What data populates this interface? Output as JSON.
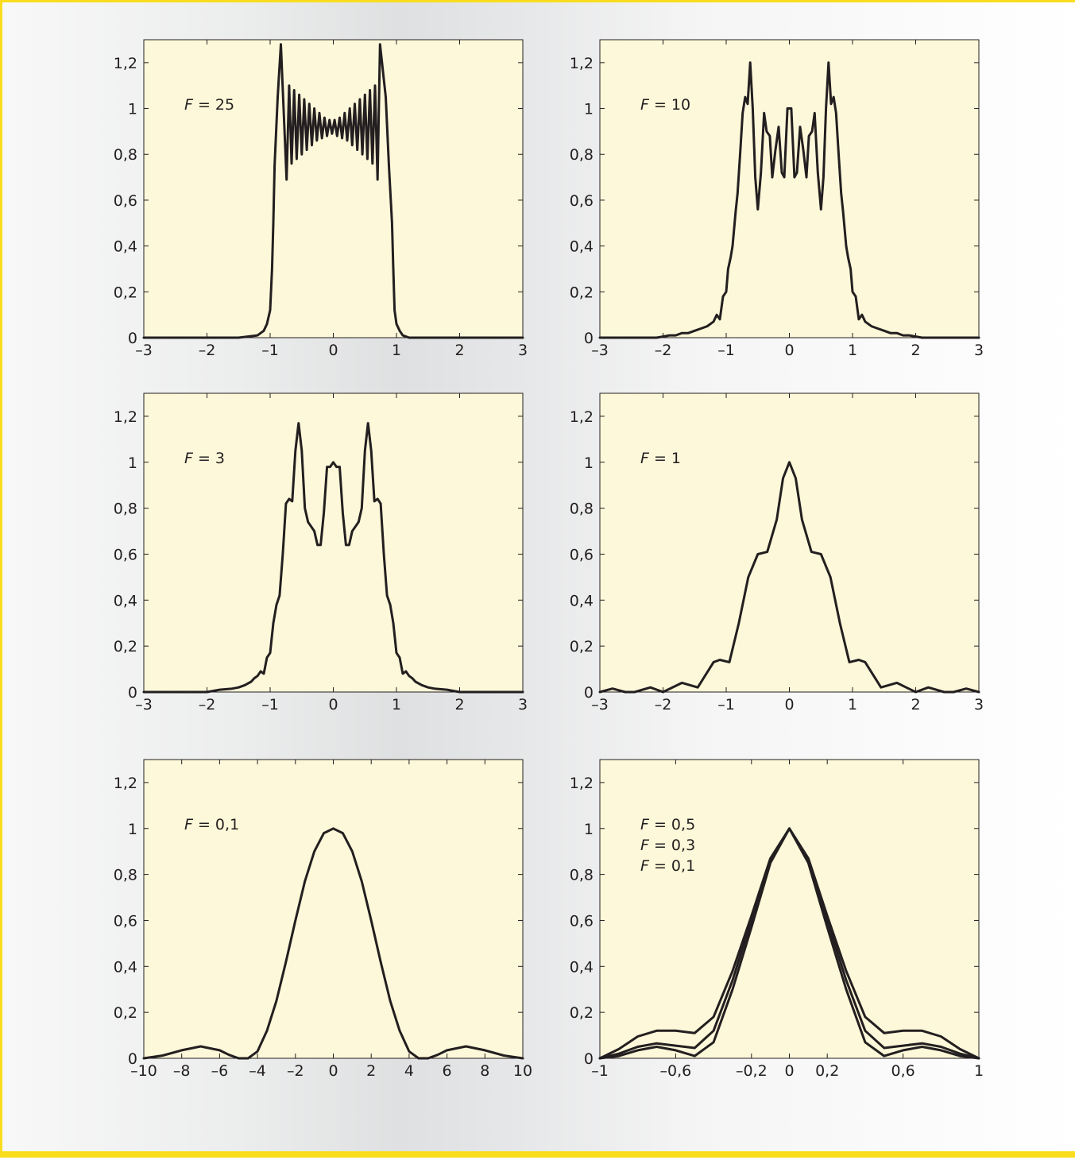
{
  "style": {
    "plot_background": "#fdf8d9",
    "line_color": "#231f20",
    "frame_color": "#231f20",
    "border_color": "#f9dd1d"
  },
  "chart_data": [
    {
      "type": "line",
      "annotations": [
        {
          "italic": "F",
          "rest": " = 25"
        }
      ],
      "xlim": [
        -3,
        3
      ],
      "ylim": [
        0,
        1.3
      ],
      "xticks": [
        -3,
        -2,
        -1,
        0,
        1,
        2,
        3
      ],
      "xtick_labels": [
        "–3",
        "–2",
        "–1",
        "0",
        "1",
        "2",
        "3"
      ],
      "yticks": [
        0,
        0.2,
        0.4,
        0.6,
        0.8,
        1,
        1.2
      ],
      "ytick_labels": [
        "0",
        "0,2",
        "0,4",
        "0,6",
        "0,8",
        "1",
        "1,2"
      ],
      "series": [
        {
          "x": [
            -3,
            -1.5,
            -1.2,
            -1.1,
            -1.05,
            -1.0,
            -0.97,
            -0.95,
            -0.93,
            -0.88,
            -0.83,
            -0.74,
            -0.7,
            -0.66,
            -0.62,
            -0.58,
            -0.54,
            -0.5,
            -0.46,
            -0.42,
            -0.38,
            -0.34,
            -0.3,
            -0.26,
            -0.22,
            -0.18,
            -0.14,
            -0.1,
            -0.06,
            -0.02,
            0.02,
            0.06,
            0.1,
            0.14,
            0.18,
            0.22,
            0.26,
            0.3,
            0.34,
            0.38,
            0.42,
            0.46,
            0.5,
            0.54,
            0.58,
            0.62,
            0.66,
            0.7,
            0.74,
            0.83,
            0.88,
            0.93,
            0.95,
            0.97,
            1.0,
            1.05,
            1.1,
            1.2,
            1.5,
            3
          ],
          "y": [
            0,
            0,
            0.01,
            0.03,
            0.06,
            0.12,
            0.3,
            0.5,
            0.75,
            1.05,
            1.28,
            0.69,
            1.1,
            0.76,
            1.08,
            0.78,
            1.06,
            0.8,
            1.04,
            0.82,
            1.02,
            0.84,
            1.0,
            0.86,
            0.98,
            0.87,
            0.96,
            0.88,
            0.95,
            0.89,
            0.95,
            0.88,
            0.96,
            0.87,
            0.98,
            0.86,
            1.0,
            0.84,
            1.02,
            0.82,
            1.04,
            0.8,
            1.06,
            0.78,
            1.08,
            0.76,
            1.1,
            0.69,
            1.28,
            1.05,
            0.75,
            0.5,
            0.3,
            0.12,
            0.06,
            0.03,
            0.01,
            0,
            0,
            0
          ]
        }
      ]
    },
    {
      "type": "line",
      "annotations": [
        {
          "italic": "F",
          "rest": " = 10"
        }
      ],
      "xlim": [
        -3,
        3
      ],
      "ylim": [
        0,
        1.3
      ],
      "xticks": [
        -3,
        -2,
        -1,
        0,
        1,
        2,
        3
      ],
      "xtick_labels": [
        "–3",
        "–2",
        "–1",
        "0",
        "1",
        "2",
        "3"
      ],
      "yticks": [
        0,
        0.2,
        0.4,
        0.6,
        0.8,
        1,
        1.2
      ],
      "ytick_labels": [
        "0",
        "0,2",
        "0,4",
        "0,6",
        "0,8",
        "1",
        "1,2"
      ],
      "series": [
        {
          "x": [
            -3,
            -2.1,
            -2.0,
            -1.9,
            -1.8,
            -1.7,
            -1.6,
            -1.5,
            -1.4,
            -1.3,
            -1.2,
            -1.15,
            -1.1,
            -1.05,
            -1.0,
            -0.97,
            -0.93,
            -0.9,
            -0.85,
            -0.82,
            -0.78,
            -0.74,
            -0.7,
            -0.66,
            -0.62,
            -0.58,
            -0.54,
            -0.5,
            -0.45,
            -0.4,
            -0.36,
            -0.31,
            -0.27,
            -0.22,
            -0.17,
            -0.12,
            -0.08,
            -0.03,
            0.03,
            0.08,
            0.12,
            0.17,
            0.22,
            0.27,
            0.31,
            0.36,
            0.4,
            0.45,
            0.5,
            0.54,
            0.58,
            0.62,
            0.66,
            0.7,
            0.74,
            0.78,
            0.82,
            0.85,
            0.9,
            0.93,
            0.97,
            1.0,
            1.05,
            1.1,
            1.15,
            1.2,
            1.3,
            1.4,
            1.5,
            1.6,
            1.7,
            1.8,
            1.9,
            2.0,
            2.1,
            3
          ],
          "y": [
            0,
            0,
            0.005,
            0.01,
            0.01,
            0.02,
            0.02,
            0.03,
            0.04,
            0.05,
            0.07,
            0.1,
            0.08,
            0.18,
            0.2,
            0.3,
            0.35,
            0.4,
            0.55,
            0.63,
            0.8,
            0.98,
            1.05,
            1.02,
            1.2,
            1.0,
            0.7,
            0.56,
            0.72,
            0.98,
            0.9,
            0.88,
            0.7,
            0.82,
            0.92,
            0.72,
            0.7,
            1.0,
            1.0,
            0.7,
            0.72,
            0.92,
            0.82,
            0.7,
            0.88,
            0.9,
            0.98,
            0.72,
            0.56,
            0.7,
            1.0,
            1.2,
            1.02,
            1.05,
            0.98,
            0.8,
            0.63,
            0.55,
            0.4,
            0.35,
            0.3,
            0.2,
            0.18,
            0.08,
            0.1,
            0.07,
            0.05,
            0.04,
            0.03,
            0.02,
            0.02,
            0.01,
            0.01,
            0.005,
            0,
            0
          ]
        }
      ]
    },
    {
      "type": "line",
      "annotations": [
        {
          "italic": "F",
          "rest": " = 3"
        }
      ],
      "xlim": [
        -3,
        3
      ],
      "ylim": [
        0,
        1.3
      ],
      "xticks": [
        -3,
        -2,
        -1,
        0,
        1,
        2,
        3
      ],
      "xtick_labels": [
        "–3",
        "–2",
        "–1",
        "0",
        "1",
        "2",
        "3"
      ],
      "yticks": [
        0,
        0.2,
        0.4,
        0.6,
        0.8,
        1,
        1.2
      ],
      "ytick_labels": [
        "0",
        "0,2",
        "0,4",
        "0,6",
        "0,8",
        "1",
        "1,2"
      ],
      "series": [
        {
          "x": [
            -3,
            -2.0,
            -1.8,
            -1.6,
            -1.5,
            -1.4,
            -1.3,
            -1.25,
            -1.2,
            -1.15,
            -1.1,
            -1.05,
            -1.0,
            -0.95,
            -0.9,
            -0.85,
            -0.8,
            -0.75,
            -0.7,
            -0.65,
            -0.6,
            -0.55,
            -0.5,
            -0.45,
            -0.4,
            -0.35,
            -0.3,
            -0.25,
            -0.2,
            -0.15,
            -0.1,
            -0.05,
            0,
            0.05,
            0.1,
            0.15,
            0.2,
            0.25,
            0.3,
            0.35,
            0.4,
            0.45,
            0.5,
            0.55,
            0.6,
            0.65,
            0.7,
            0.75,
            0.8,
            0.85,
            0.9,
            0.95,
            1.0,
            1.05,
            1.1,
            1.15,
            1.2,
            1.25,
            1.3,
            1.4,
            1.5,
            1.6,
            1.8,
            2.0,
            3
          ],
          "y": [
            0,
            0,
            0.01,
            0.015,
            0.02,
            0.03,
            0.045,
            0.06,
            0.07,
            0.09,
            0.08,
            0.15,
            0.17,
            0.3,
            0.38,
            0.42,
            0.6,
            0.82,
            0.84,
            0.83,
            1.05,
            1.17,
            1.05,
            0.8,
            0.74,
            0.72,
            0.7,
            0.64,
            0.64,
            0.78,
            0.98,
            0.98,
            1.0,
            0.98,
            0.98,
            0.78,
            0.64,
            0.64,
            0.7,
            0.72,
            0.74,
            0.8,
            1.05,
            1.17,
            1.05,
            0.83,
            0.84,
            0.82,
            0.6,
            0.42,
            0.38,
            0.3,
            0.17,
            0.15,
            0.08,
            0.09,
            0.07,
            0.06,
            0.045,
            0.03,
            0.02,
            0.015,
            0.01,
            0,
            0
          ]
        }
      ]
    },
    {
      "type": "line",
      "annotations": [
        {
          "italic": "F",
          "rest": " = 1"
        }
      ],
      "xlim": [
        -3,
        3
      ],
      "ylim": [
        0,
        1.3
      ],
      "xticks": [
        -3,
        -2,
        -1,
        0,
        1,
        2,
        3
      ],
      "xtick_labels": [
        "–3",
        "–2",
        "–1",
        "0",
        "1",
        "2",
        "3"
      ],
      "yticks": [
        0,
        0.2,
        0.4,
        0.6,
        0.8,
        1,
        1.2
      ],
      "ytick_labels": [
        "0",
        "0,2",
        "0,4",
        "0,6",
        "0,8",
        "1",
        "1,2"
      ],
      "series": [
        {
          "x": [
            -3,
            -2.8,
            -2.6,
            -2.45,
            -2.2,
            -2.0,
            -1.7,
            -1.45,
            -1.2,
            -1.1,
            -0.95,
            -0.8,
            -0.65,
            -0.5,
            -0.35,
            -0.2,
            -0.1,
            0,
            0.1,
            0.2,
            0.35,
            0.5,
            0.65,
            0.8,
            0.95,
            1.1,
            1.2,
            1.45,
            1.7,
            2.0,
            2.2,
            2.45,
            2.6,
            2.8,
            3
          ],
          "y": [
            0,
            0.015,
            0.0,
            0.0,
            0.02,
            0.0,
            0.04,
            0.02,
            0.13,
            0.14,
            0.13,
            0.3,
            0.5,
            0.6,
            0.61,
            0.75,
            0.93,
            1.0,
            0.93,
            0.75,
            0.61,
            0.6,
            0.5,
            0.3,
            0.13,
            0.14,
            0.13,
            0.02,
            0.04,
            0.0,
            0.02,
            0.0,
            0.0,
            0.015,
            0
          ]
        }
      ]
    },
    {
      "type": "line",
      "annotations": [
        {
          "italic": "F",
          "rest": " = 0,1"
        }
      ],
      "xlim": [
        -10,
        10
      ],
      "ylim": [
        0,
        1.3
      ],
      "xticks": [
        -10,
        -8,
        -6,
        -4,
        -2,
        0,
        2,
        4,
        6,
        8,
        10
      ],
      "xtick_labels": [
        "–10",
        "–8",
        "–6",
        "–4",
        "–2",
        "0",
        "2",
        "4",
        "6",
        "8",
        "10"
      ],
      "yticks": [
        0,
        0.2,
        0.4,
        0.6,
        0.8,
        1,
        1.2
      ],
      "ytick_labels": [
        "0",
        "0,2",
        "0,4",
        "0,6",
        "0,8",
        "1",
        "1,2"
      ],
      "series": [
        {
          "x": [
            -10,
            -9,
            -8,
            -7,
            -6,
            -5.5,
            -5,
            -4.5,
            -4,
            -3.5,
            -3,
            -2.5,
            -2,
            -1.5,
            -1,
            -0.5,
            0,
            0.5,
            1,
            1.5,
            2,
            2.5,
            3,
            3.5,
            4,
            4.5,
            5,
            5.5,
            6,
            7,
            8,
            9,
            10
          ],
          "y": [
            0,
            0.012,
            0.035,
            0.052,
            0.035,
            0.015,
            0.0,
            0.0,
            0.03,
            0.12,
            0.25,
            0.42,
            0.6,
            0.77,
            0.9,
            0.98,
            1.0,
            0.98,
            0.9,
            0.77,
            0.6,
            0.42,
            0.25,
            0.12,
            0.03,
            0.0,
            0.0,
            0.015,
            0.035,
            0.052,
            0.035,
            0.012,
            0
          ]
        }
      ]
    },
    {
      "type": "line",
      "annotations": [
        {
          "italic": "F",
          "rest": " = 0,5"
        },
        {
          "italic": "F",
          "rest": " = 0,3"
        },
        {
          "italic": "F",
          "rest": " = 0,1"
        }
      ],
      "xlim": [
        -1,
        1
      ],
      "ylim": [
        0,
        1.3
      ],
      "xticks": [
        -1,
        -0.6,
        -0.2,
        0,
        0.2,
        0.6,
        1
      ],
      "xtick_labels": [
        "–1",
        "–0,6",
        "–0,2",
        "0",
        "0,2",
        "0,6",
        "1"
      ],
      "yticks": [
        0,
        0.2,
        0.4,
        0.6,
        0.8,
        1,
        1.2
      ],
      "ytick_labels": [
        "0",
        "0,2",
        "0,4",
        "0,6",
        "0,8",
        "1",
        "1,2"
      ],
      "series": [
        {
          "x": [
            -1,
            -0.9,
            -0.8,
            -0.7,
            -0.6,
            -0.5,
            -0.4,
            -0.3,
            -0.2,
            -0.1,
            0,
            0.1,
            0.2,
            0.3,
            0.4,
            0.5,
            0.6,
            0.7,
            0.8,
            0.9,
            1
          ],
          "y": [
            0,
            0.04,
            0.095,
            0.12,
            0.12,
            0.11,
            0.18,
            0.38,
            0.62,
            0.87,
            1.0,
            0.87,
            0.62,
            0.38,
            0.18,
            0.11,
            0.12,
            0.12,
            0.095,
            0.04,
            0
          ]
        },
        {
          "x": [
            -1,
            -0.9,
            -0.8,
            -0.7,
            -0.6,
            -0.5,
            -0.4,
            -0.3,
            -0.2,
            -0.1,
            0,
            0.1,
            0.2,
            0.3,
            0.4,
            0.5,
            0.6,
            0.7,
            0.8,
            0.9,
            1
          ],
          "y": [
            0,
            0.02,
            0.05,
            0.065,
            0.055,
            0.045,
            0.12,
            0.34,
            0.6,
            0.86,
            1.0,
            0.86,
            0.6,
            0.34,
            0.12,
            0.045,
            0.055,
            0.065,
            0.05,
            0.02,
            0
          ]
        },
        {
          "x": [
            -1,
            -0.9,
            -0.8,
            -0.7,
            -0.6,
            -0.5,
            -0.4,
            -0.3,
            -0.2,
            -0.1,
            0,
            0.1,
            0.2,
            0.3,
            0.4,
            0.5,
            0.6,
            0.7,
            0.8,
            0.9,
            1
          ],
          "y": [
            0,
            0.01,
            0.035,
            0.05,
            0.035,
            0.01,
            0.07,
            0.3,
            0.57,
            0.85,
            1.0,
            0.85,
            0.57,
            0.3,
            0.07,
            0.01,
            0.035,
            0.05,
            0.035,
            0.01,
            0
          ]
        }
      ]
    }
  ]
}
